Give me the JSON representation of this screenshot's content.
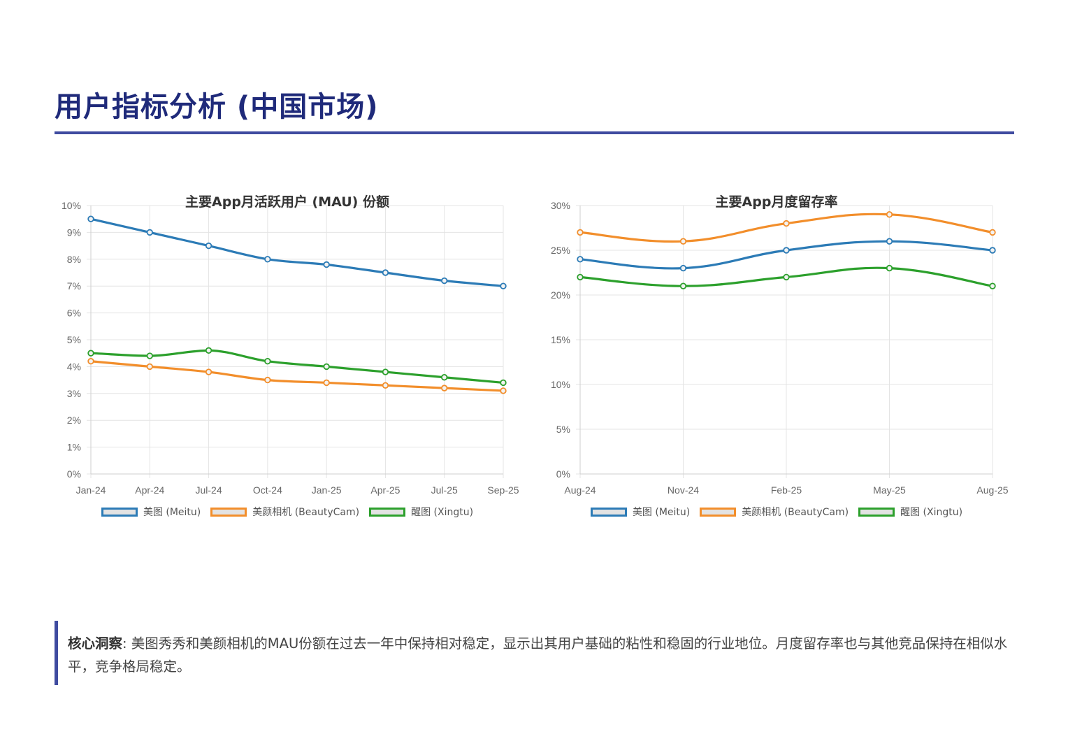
{
  "header": {
    "title": "用户指标分析 (中国市场)"
  },
  "colors": {
    "meitu": "#2c7bb6",
    "beautycam": "#f28e2b",
    "xingtu": "#2ca02c",
    "accent": "#3f4ba0",
    "title": "#1f2a7a"
  },
  "chart_data": [
    {
      "type": "line",
      "title": "主要App月活跃用户 (MAU) 份额",
      "categories": [
        "Jan-24",
        "Apr-24",
        "Jul-24",
        "Oct-24",
        "Jan-25",
        "Apr-25",
        "Jul-25",
        "Sep-25"
      ],
      "ylim": [
        0,
        10
      ],
      "yticks": [
        "0%",
        "1%",
        "2%",
        "3%",
        "4%",
        "5%",
        "6%",
        "7%",
        "8%",
        "9%",
        "10%"
      ],
      "grid": true,
      "curve": "monotone",
      "legend": "bottom",
      "series": [
        {
          "name": "美图 (Meitu)",
          "color": "#2c7bb6",
          "values": [
            9.5,
            9.0,
            8.5,
            8.0,
            7.8,
            7.5,
            7.2,
            7.0
          ]
        },
        {
          "name": "美颜相机 (BeautyCam)",
          "color": "#f28e2b",
          "values": [
            4.2,
            4.0,
            3.8,
            3.5,
            3.4,
            3.3,
            3.2,
            3.1
          ]
        },
        {
          "name": "醒图 (Xingtu)",
          "color": "#2ca02c",
          "values": [
            4.5,
            4.4,
            4.6,
            4.2,
            4.0,
            3.8,
            3.6,
            3.4
          ]
        }
      ]
    },
    {
      "type": "line",
      "title": "主要App月度留存率",
      "categories": [
        "Aug-24",
        "Nov-24",
        "Feb-25",
        "May-25",
        "Aug-25"
      ],
      "ylim": [
        0,
        30
      ],
      "yticks": [
        "0%",
        "5%",
        "10%",
        "15%",
        "20%",
        "25%",
        "30%"
      ],
      "grid": true,
      "curve": "smooth",
      "legend": "bottom",
      "series": [
        {
          "name": "美图 (Meitu)",
          "color": "#2c7bb6",
          "values": [
            24,
            23,
            25,
            26,
            25
          ]
        },
        {
          "name": "美颜相机 (BeautyCam)",
          "color": "#f28e2b",
          "values": [
            27,
            26,
            28,
            29,
            27
          ]
        },
        {
          "name": "醒图 (Xingtu)",
          "color": "#2ca02c",
          "values": [
            22,
            21,
            22,
            23,
            21
          ]
        }
      ]
    }
  ],
  "insight": {
    "label": "核心洞察",
    "text": ": 美图秀秀和美颜相机的MAU份额在过去一年中保持相对稳定，显示出其用户基础的粘性和稳固的行业地位。月度留存率也与其他竞品保持在相似水平，竞争格局稳定。"
  }
}
